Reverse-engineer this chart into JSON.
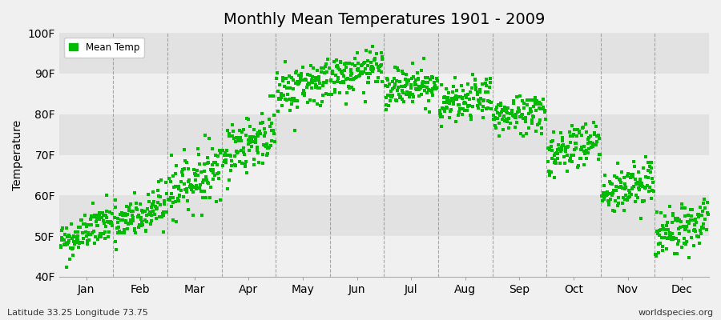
{
  "title": "Monthly Mean Temperatures 1901 - 2009",
  "ylabel": "Temperature",
  "xlabel_bottom_left": "Latitude 33.25 Longitude 73.75",
  "xlabel_bottom_right": "worldspecies.org",
  "legend_label": "Mean Temp",
  "ylim": [
    40,
    100
  ],
  "yticks": [
    40,
    50,
    60,
    70,
    80,
    90,
    100
  ],
  "ytick_labels": [
    "40F",
    "50F",
    "60F",
    "70F",
    "80F",
    "90F",
    "100F"
  ],
  "months": [
    "Jan",
    "Feb",
    "Mar",
    "Apr",
    "May",
    "Jun",
    "Jul",
    "Aug",
    "Sep",
    "Oct",
    "Nov",
    "Dec"
  ],
  "month_means": [
    51,
    55,
    64,
    73,
    87,
    90,
    87,
    83,
    80,
    72,
    62,
    52
  ],
  "month_trends": [
    0.5,
    0.5,
    0.5,
    0.5,
    0.3,
    0.2,
    0.2,
    0.2,
    0.2,
    0.3,
    0.3,
    0.4
  ],
  "month_spreads": [
    2.5,
    3.0,
    3.5,
    3.5,
    3.0,
    2.5,
    2.5,
    2.5,
    2.5,
    3.0,
    3.0,
    3.0
  ],
  "dot_color": "#00bb00",
  "bg_color": "#f0f0f0",
  "plot_bg_color": "#f0f0f0",
  "stripe_color": "#e2e2e2",
  "grid_color": "#888888",
  "title_fontsize": 14,
  "axis_label_fontsize": 10,
  "tick_fontsize": 10,
  "n_years": 109,
  "start_year": 1901,
  "seed": 42,
  "dot_size": 5,
  "xlim_start": 0.0,
  "xlim_end": 12.0
}
